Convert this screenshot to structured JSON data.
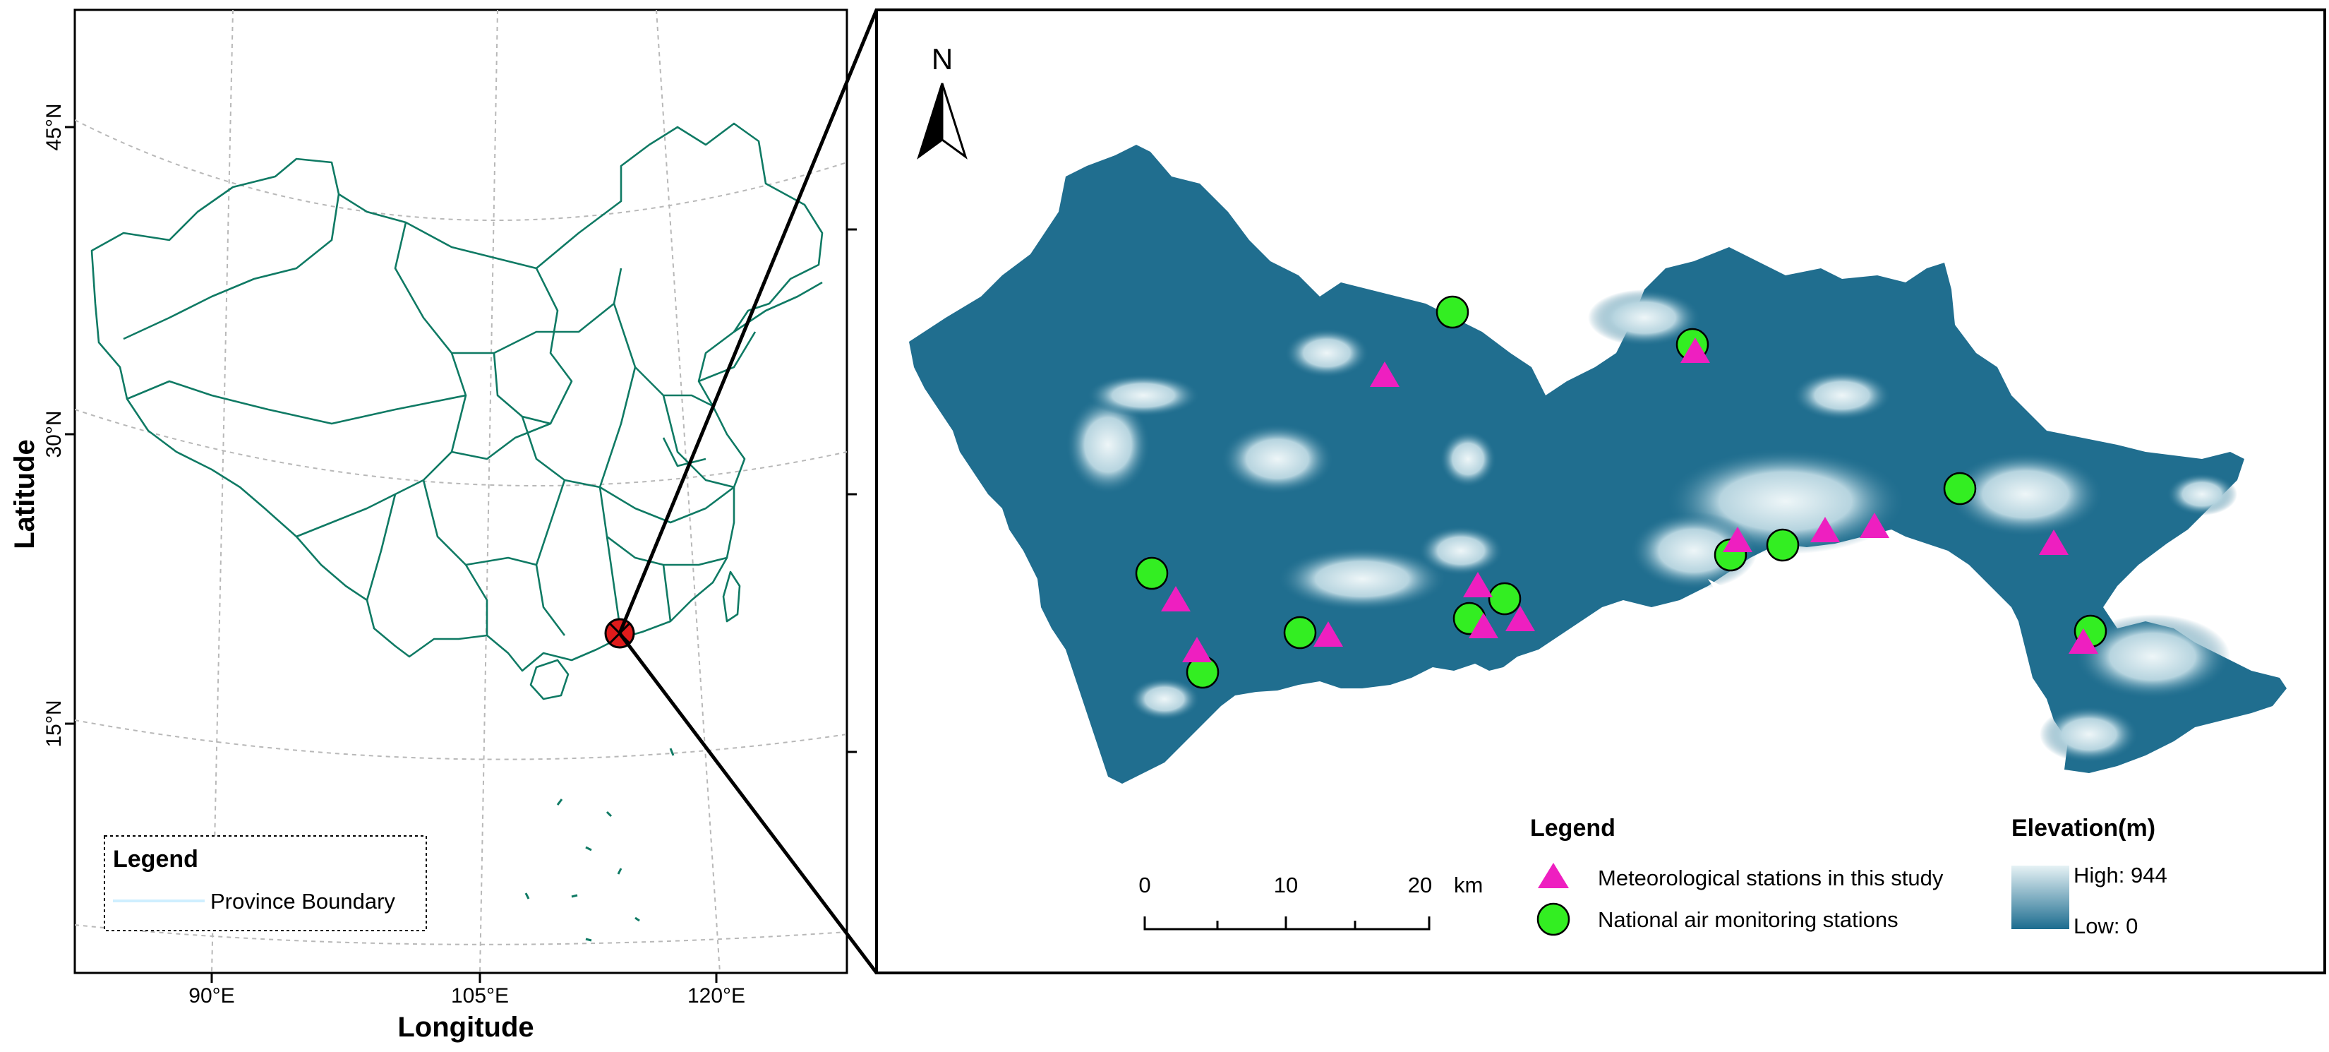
{
  "overview_map": {
    "x_axis_title": "Longitude",
    "y_axis_title": "Latitude",
    "x_ticks": [
      "90°E",
      "105°E",
      "120°E"
    ],
    "y_ticks": [
      "45°N",
      "30°N",
      "15°N"
    ],
    "legend": {
      "title": "Legend",
      "items": [
        {
          "label": "Province Boundary",
          "color": "#cfefff"
        }
      ]
    },
    "boundary_color": "#0f7a64",
    "location_marker_color": "#e01b1b"
  },
  "detail_map": {
    "north_label": "N",
    "scale_bar": {
      "ticks": [
        "0",
        "10",
        "20"
      ],
      "unit": "km"
    },
    "legend": {
      "title": "Legend",
      "items": [
        {
          "label": "Meteorological stations in this study",
          "symbol": "triangle",
          "color": "#ee1fc0"
        },
        {
          "label": "National air monitoring stations",
          "symbol": "circle",
          "color": "#33ee22"
        }
      ]
    },
    "elevation": {
      "title": "Elevation(m)",
      "high_label": "High: 944",
      "low_label": "Low: 0",
      "high_color": "#e6f2f5",
      "low_color": "#1c6c8f"
    },
    "terrain_base_color": "#206e8f"
  }
}
